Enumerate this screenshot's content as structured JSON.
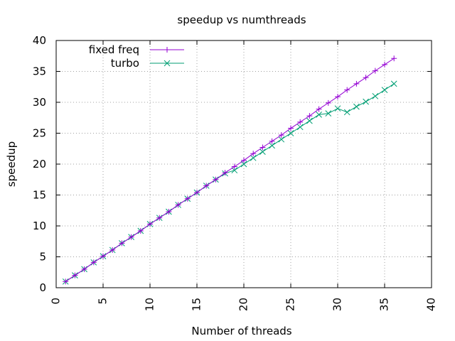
{
  "chart_data": {
    "type": "line",
    "title": "speedup vs numthreads",
    "xlabel": "Number of threads",
    "ylabel": "speedup",
    "xlim": [
      0,
      40
    ],
    "ylim": [
      0,
      40
    ],
    "xticks": [
      0,
      5,
      10,
      15,
      20,
      25,
      30,
      35,
      40
    ],
    "yticks": [
      0,
      5,
      10,
      15,
      20,
      25,
      30,
      35,
      40
    ],
    "grid": true,
    "legend_position": "top-left",
    "series": [
      {
        "name": "fixed freq",
        "color": "#9400d3",
        "marker": "plus",
        "x": [
          1,
          2,
          3,
          4,
          5,
          6,
          7,
          8,
          9,
          10,
          11,
          12,
          13,
          14,
          15,
          16,
          17,
          18,
          19,
          20,
          21,
          22,
          23,
          24,
          25,
          26,
          27,
          28,
          29,
          30,
          31,
          32,
          33,
          34,
          35,
          36
        ],
        "y": [
          1.0,
          2.0,
          3.0,
          4.1,
          5.1,
          6.1,
          7.2,
          8.2,
          9.2,
          10.3,
          11.3,
          12.3,
          13.4,
          14.4,
          15.4,
          16.5,
          17.5,
          18.6,
          19.6,
          20.6,
          21.7,
          22.7,
          23.7,
          24.7,
          25.8,
          26.8,
          27.8,
          28.9,
          29.9,
          30.9,
          32.0,
          33.0,
          34.0,
          35.1,
          36.1,
          37.1
        ]
      },
      {
        "name": "turbo",
        "color": "#009e73",
        "marker": "cross",
        "x": [
          1,
          2,
          3,
          4,
          5,
          6,
          7,
          8,
          9,
          10,
          11,
          12,
          13,
          14,
          15,
          16,
          17,
          18,
          19,
          20,
          21,
          22,
          23,
          24,
          25,
          26,
          27,
          28,
          29,
          30,
          31,
          32,
          33,
          34,
          35,
          36
        ],
        "y": [
          1.0,
          2.0,
          3.0,
          4.1,
          5.1,
          6.1,
          7.2,
          8.2,
          9.2,
          10.3,
          11.3,
          12.3,
          13.4,
          14.4,
          15.4,
          16.5,
          17.5,
          18.5,
          19.0,
          20.0,
          21.0,
          22.0,
          23.0,
          24.0,
          25.0,
          26.0,
          27.0,
          28.0,
          28.2,
          29.0,
          28.4,
          29.3,
          30.1,
          31.0,
          32.0,
          33.0
        ]
      }
    ]
  }
}
